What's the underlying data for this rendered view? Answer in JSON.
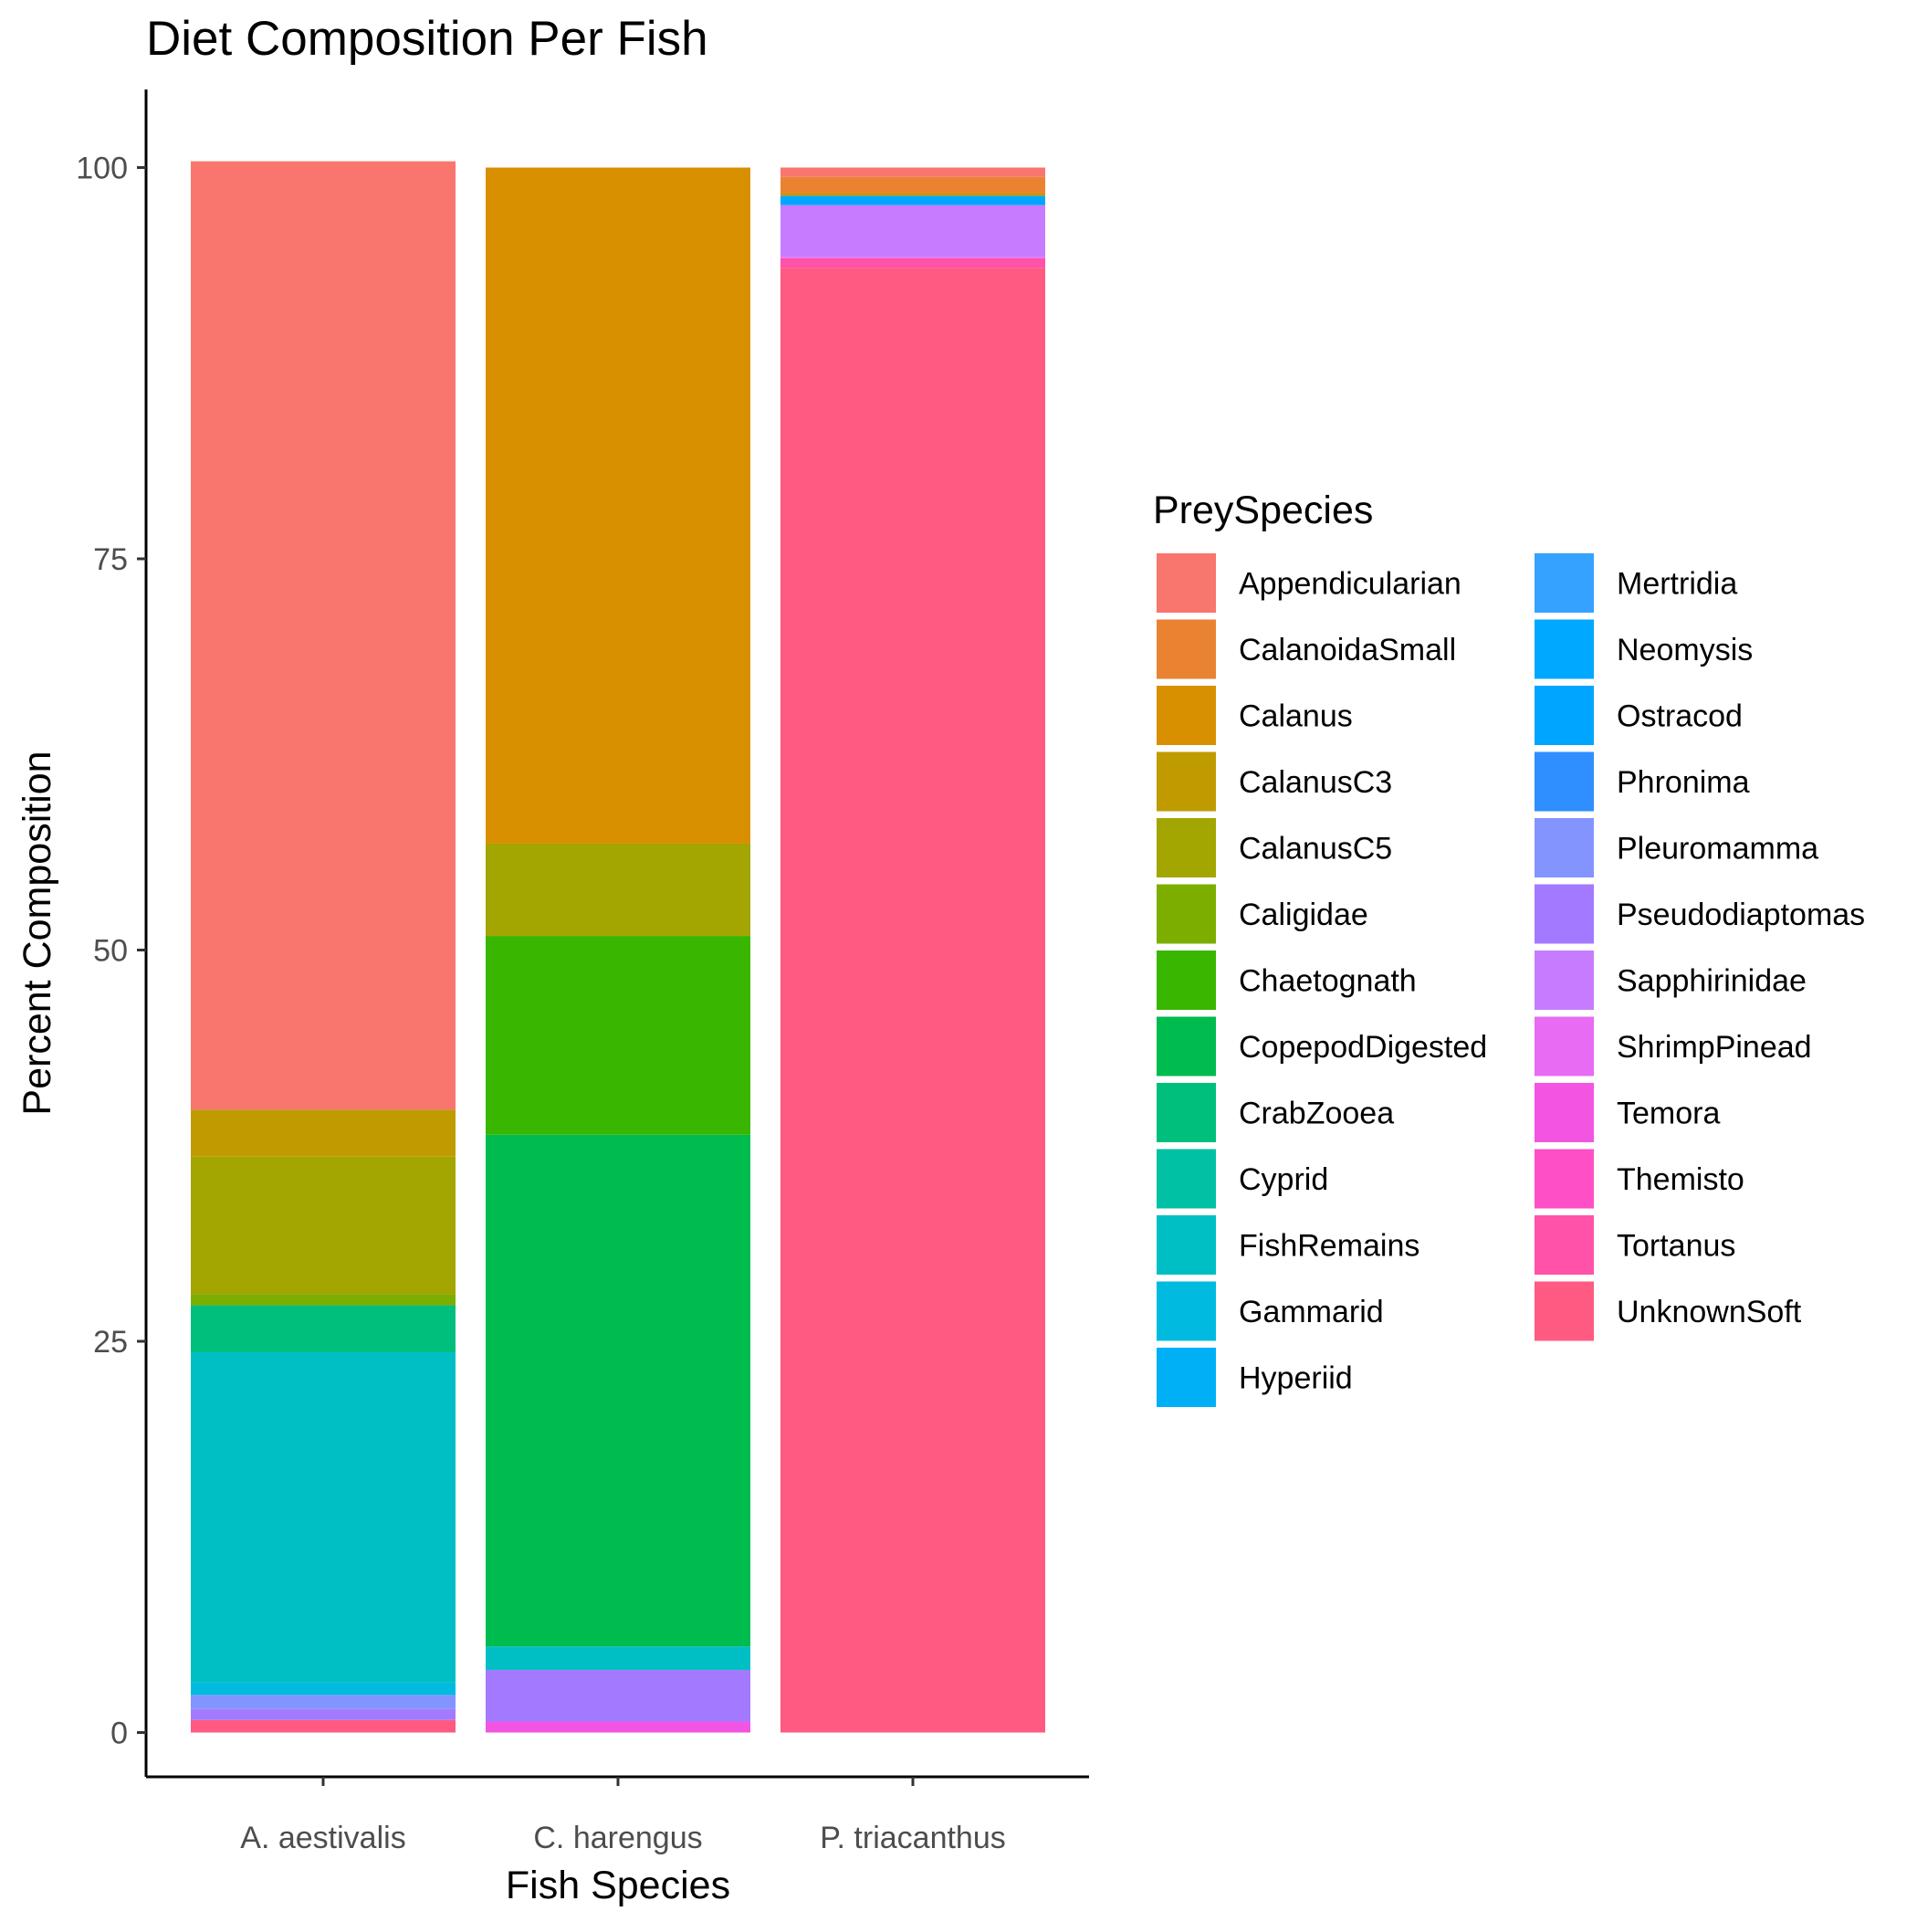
{
  "chart_data": {
    "type": "bar",
    "stacked": true,
    "title": "Diet Composition Per Fish",
    "xlabel": "Fish Species",
    "ylabel": "Percent Composition",
    "ylim": [
      -5,
      105
    ],
    "yticks": [
      0,
      25,
      50,
      75,
      100
    ],
    "grid": false,
    "legend": {
      "title": "PreySpecies",
      "position": "right",
      "columns": 2
    },
    "categories": [
      "A. aestivalis",
      "C. harengus",
      "P. triacanthus"
    ],
    "series": [
      {
        "name": "Appendicularian",
        "color": "#F8766D",
        "values": [
          60.6,
          0,
          0.6
        ]
      },
      {
        "name": "CalanoidaSmall",
        "color": "#EA8331",
        "values": [
          0,
          0,
          1.0
        ]
      },
      {
        "name": "Calanus",
        "color": "#D89000",
        "values": [
          0,
          43.2,
          0.2
        ]
      },
      {
        "name": "CalanusC3",
        "color": "#C09B00",
        "values": [
          3.0,
          0,
          0
        ]
      },
      {
        "name": "CalanusC5",
        "color": "#A3A500",
        "values": [
          8.8,
          5.9,
          0
        ]
      },
      {
        "name": "Caligidae",
        "color": "#7CAE00",
        "values": [
          0.7,
          0,
          0
        ]
      },
      {
        "name": "Chaetognath",
        "color": "#39B600",
        "values": [
          0,
          12.7,
          0
        ]
      },
      {
        "name": "CopepodDigested",
        "color": "#00BB4E",
        "values": [
          0,
          32.7,
          0
        ]
      },
      {
        "name": "CrabZooea",
        "color": "#00BF7D",
        "values": [
          3.0,
          0,
          0
        ]
      },
      {
        "name": "Cyprid",
        "color": "#00C1A3",
        "values": [
          0,
          0,
          0
        ]
      },
      {
        "name": "FishRemains",
        "color": "#00BFC4",
        "values": [
          21.1,
          1.5,
          0
        ]
      },
      {
        "name": "Gammarid",
        "color": "#00BAE0",
        "values": [
          0.8,
          0,
          0
        ]
      },
      {
        "name": "Hyperiid",
        "color": "#00B0F6",
        "values": [
          0,
          0,
          0
        ]
      },
      {
        "name": "Mertridia",
        "color": "#35A2FF",
        "values": [
          0,
          0,
          0
        ]
      },
      {
        "name": "Neomysis",
        "color": "#00A9FF",
        "values": [
          0,
          0,
          0.3
        ]
      },
      {
        "name": "Ostracod",
        "color": "#00A5FF",
        "values": [
          0,
          0,
          0.3
        ]
      },
      {
        "name": "Phronima",
        "color": "#2F8FFF",
        "values": [
          0,
          0,
          0
        ]
      },
      {
        "name": "Pleuromamma",
        "color": "#8494FF",
        "values": [
          0.9,
          0,
          0
        ]
      },
      {
        "name": "Pseudodiaptomas",
        "color": "#A37AFF",
        "values": [
          0.7,
          3.3,
          0
        ]
      },
      {
        "name": "Sapphirinidae",
        "color": "#C77CFF",
        "values": [
          0,
          0,
          3.3
        ]
      },
      {
        "name": "ShrimpPinead",
        "color": "#E76BF3",
        "values": [
          0,
          0,
          0.1
        ]
      },
      {
        "name": "Temora",
        "color": "#F355E3",
        "values": [
          0,
          0.7,
          0
        ]
      },
      {
        "name": "Themisto",
        "color": "#FF4FC6",
        "values": [
          0,
          0,
          0
        ]
      },
      {
        "name": "Tortanus",
        "color": "#FF52A8",
        "values": [
          0,
          0,
          0.6
        ]
      },
      {
        "name": "UnknownSoft",
        "color": "#FF5A82",
        "values": [
          0.8,
          0,
          93.6
        ]
      }
    ]
  }
}
